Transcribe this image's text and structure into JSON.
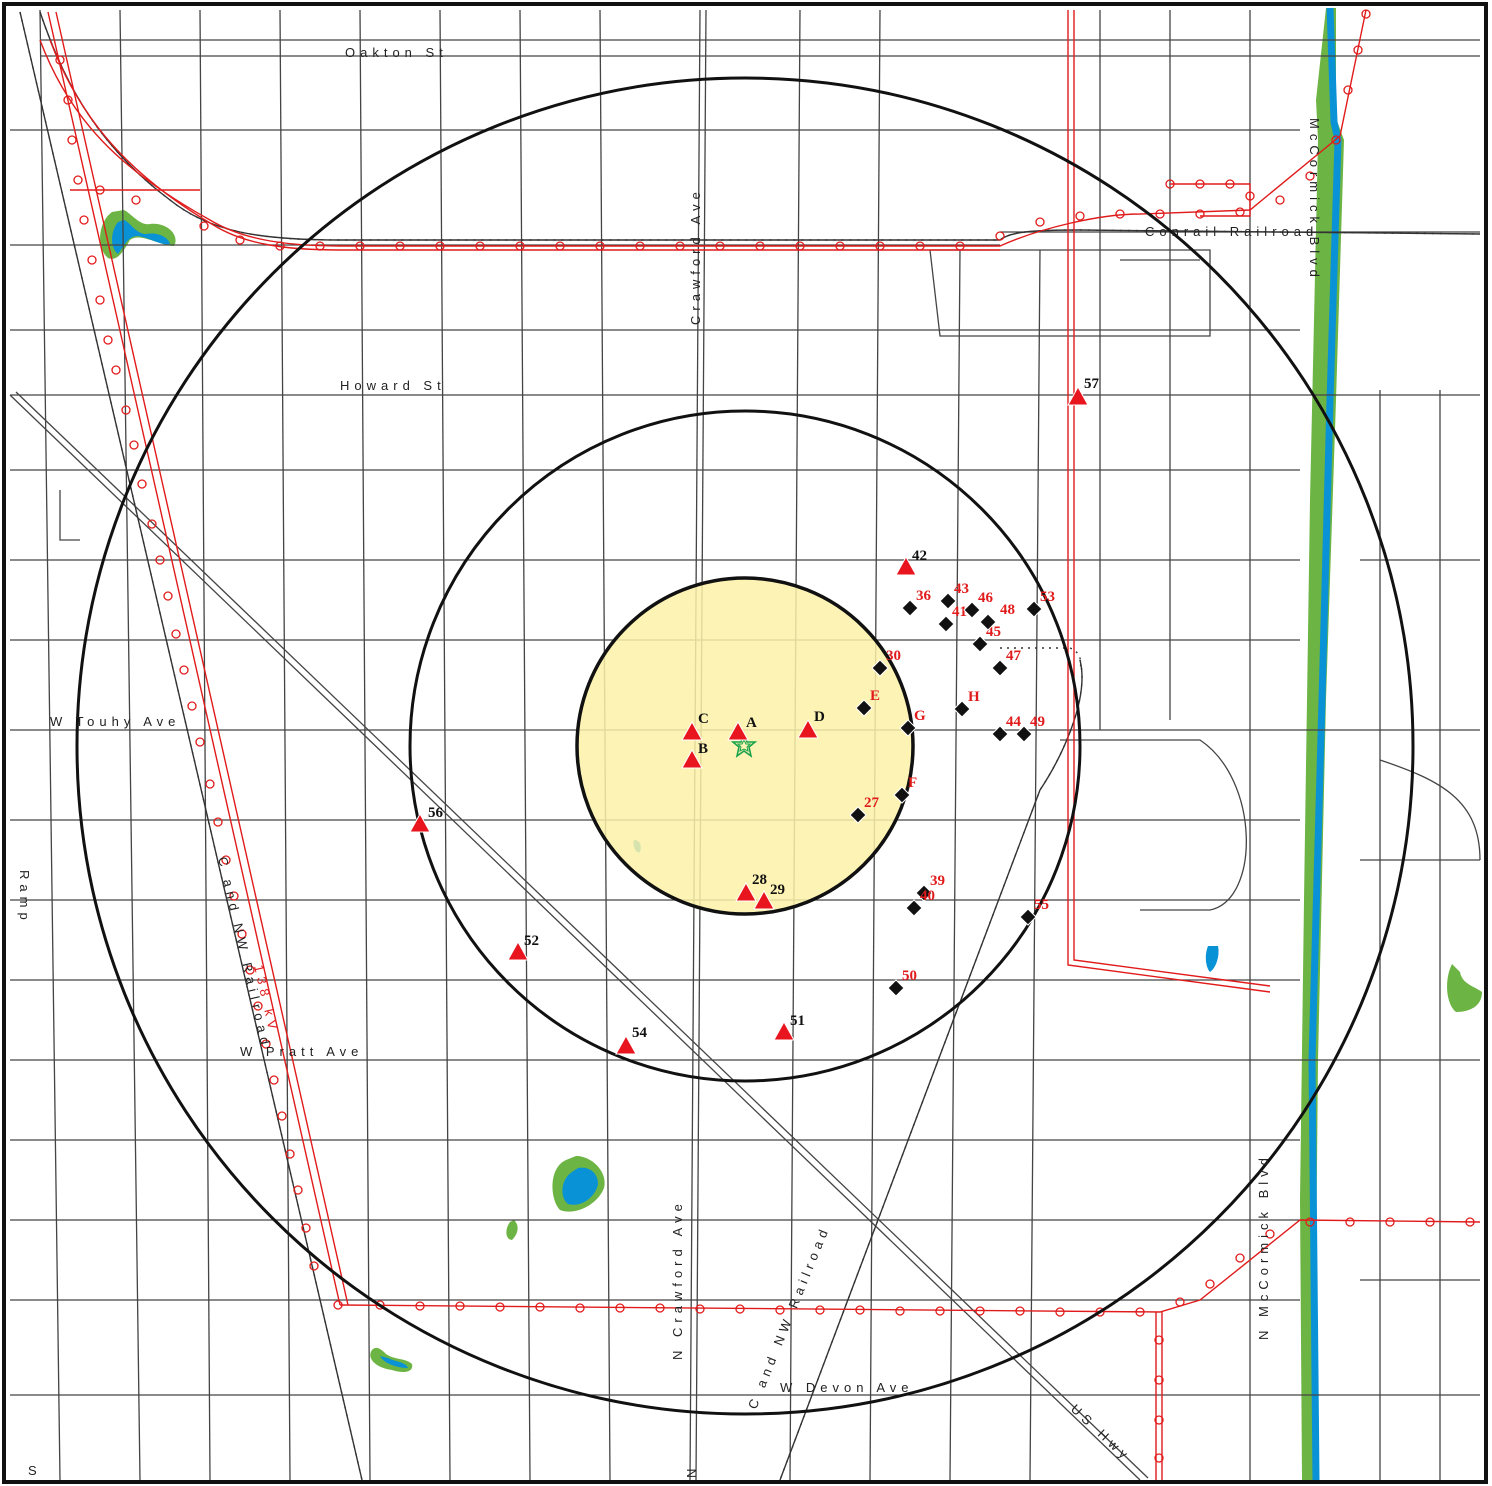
{
  "colors": {
    "background": "#ffffff",
    "street": "#444444",
    "railroad": "#333333",
    "utility": "#e11b1b",
    "water": "#0a92d6",
    "vegetation": "#6cb443",
    "zone_fill": "#fbf1a8",
    "ring": "#111111",
    "triangle": "#e8141e",
    "diamond": "#111111",
    "label_black": "#111111",
    "label_red": "#e11b1b",
    "center": "#19a34a"
  },
  "street_labels": [
    {
      "id": "oakton",
      "text": "Oakton St"
    },
    {
      "id": "howard",
      "text": "Howard St"
    },
    {
      "id": "touhy",
      "text": "W Touhy Ave"
    },
    {
      "id": "pratt",
      "text": "W Pratt Ave"
    },
    {
      "id": "devon",
      "text": "W Devon Ave"
    },
    {
      "id": "crawford_top",
      "text": "Crawford Ave"
    },
    {
      "id": "crawford_bottom",
      "text": "N Crawford Ave"
    },
    {
      "id": "mccormick_top",
      "text": "McCormick Blvd"
    },
    {
      "id": "mccormick_bottom",
      "text": "N McCormick Blvd"
    },
    {
      "id": "conrail",
      "text": "Conrail Railroad"
    },
    {
      "id": "cnw_left",
      "text": "C and NW Railroad"
    },
    {
      "id": "cnw_center",
      "text": "C and NW Railroad"
    },
    {
      "id": "ushwy",
      "text": "US Hwy"
    },
    {
      "id": "ramp",
      "text": "Ramp"
    },
    {
      "id": "edge_s",
      "text": "S"
    },
    {
      "id": "edge_n",
      "text": "N"
    },
    {
      "id": "kv",
      "text": "138 kV"
    }
  ],
  "center_marker": {
    "icon": "star-icon"
  },
  "triangle_sites": [
    {
      "label": "A",
      "color": "black"
    },
    {
      "label": "B",
      "color": "black"
    },
    {
      "label": "C",
      "color": "black"
    },
    {
      "label": "D",
      "color": "black"
    },
    {
      "label": "28",
      "color": "black"
    },
    {
      "label": "29",
      "color": "black"
    },
    {
      "label": "42",
      "color": "black"
    },
    {
      "label": "51",
      "color": "black"
    },
    {
      "label": "52",
      "color": "black"
    },
    {
      "label": "54",
      "color": "black"
    },
    {
      "label": "56",
      "color": "black"
    },
    {
      "label": "57",
      "color": "black"
    }
  ],
  "diamond_sites": [
    {
      "label": "E",
      "color": "red"
    },
    {
      "label": "F",
      "color": "red"
    },
    {
      "label": "G",
      "color": "red"
    },
    {
      "label": "H",
      "color": "red"
    },
    {
      "label": "27",
      "color": "red"
    },
    {
      "label": "30",
      "color": "red"
    },
    {
      "label": "36",
      "color": "red"
    },
    {
      "label": "39",
      "color": "red"
    },
    {
      "label": "40",
      "color": "red"
    },
    {
      "label": "41",
      "color": "red"
    },
    {
      "label": "43",
      "color": "red"
    },
    {
      "label": "44",
      "color": "red"
    },
    {
      "label": "45",
      "color": "red"
    },
    {
      "label": "46",
      "color": "red"
    },
    {
      "label": "47",
      "color": "red"
    },
    {
      "label": "48",
      "color": "red"
    },
    {
      "label": "49",
      "color": "red"
    },
    {
      "label": "50",
      "color": "red"
    },
    {
      "label": "53",
      "color": "red"
    },
    {
      "label": "55",
      "color": "red"
    }
  ]
}
